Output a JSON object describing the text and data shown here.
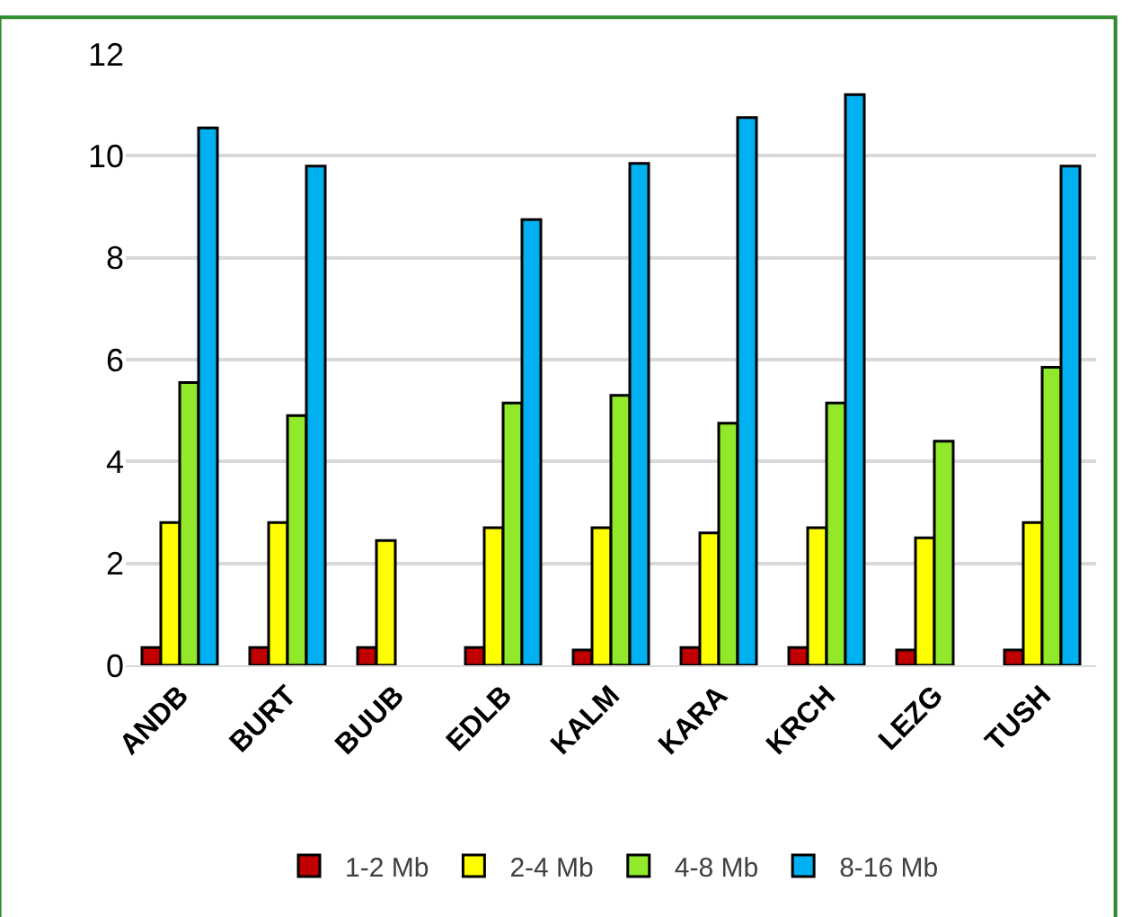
{
  "chart_data": {
    "type": "bar",
    "categories": [
      "ANDB",
      "BURT",
      "BUUB",
      "EDLB",
      "KALM",
      "KARA",
      "KRCH",
      "LEZG",
      "TUSH"
    ],
    "series": [
      {
        "name": "1-2 Mb",
        "color": "#c00000",
        "values": [
          0.35,
          0.35,
          0.35,
          0.35,
          0.3,
          0.35,
          0.35,
          0.3,
          0.3
        ]
      },
      {
        "name": "2-4 Mb",
        "color": "#ffff00",
        "values": [
          2.8,
          2.8,
          2.45,
          2.7,
          2.7,
          2.6,
          2.7,
          2.5,
          2.8
        ]
      },
      {
        "name": "4-8 Mb",
        "color": "#92e82a",
        "values": [
          5.55,
          4.9,
          null,
          5.15,
          5.3,
          4.75,
          5.15,
          4.4,
          5.85
        ]
      },
      {
        "name": "8-16 Mb",
        "color": "#00b0f0",
        "values": [
          10.55,
          9.8,
          null,
          8.75,
          9.85,
          10.75,
          11.2,
          null,
          9.8
        ]
      }
    ],
    "ylim": [
      0,
      12
    ],
    "yticks": [
      0,
      2,
      4,
      6,
      8,
      10,
      12
    ],
    "grid": "y",
    "legend": "bottom"
  }
}
